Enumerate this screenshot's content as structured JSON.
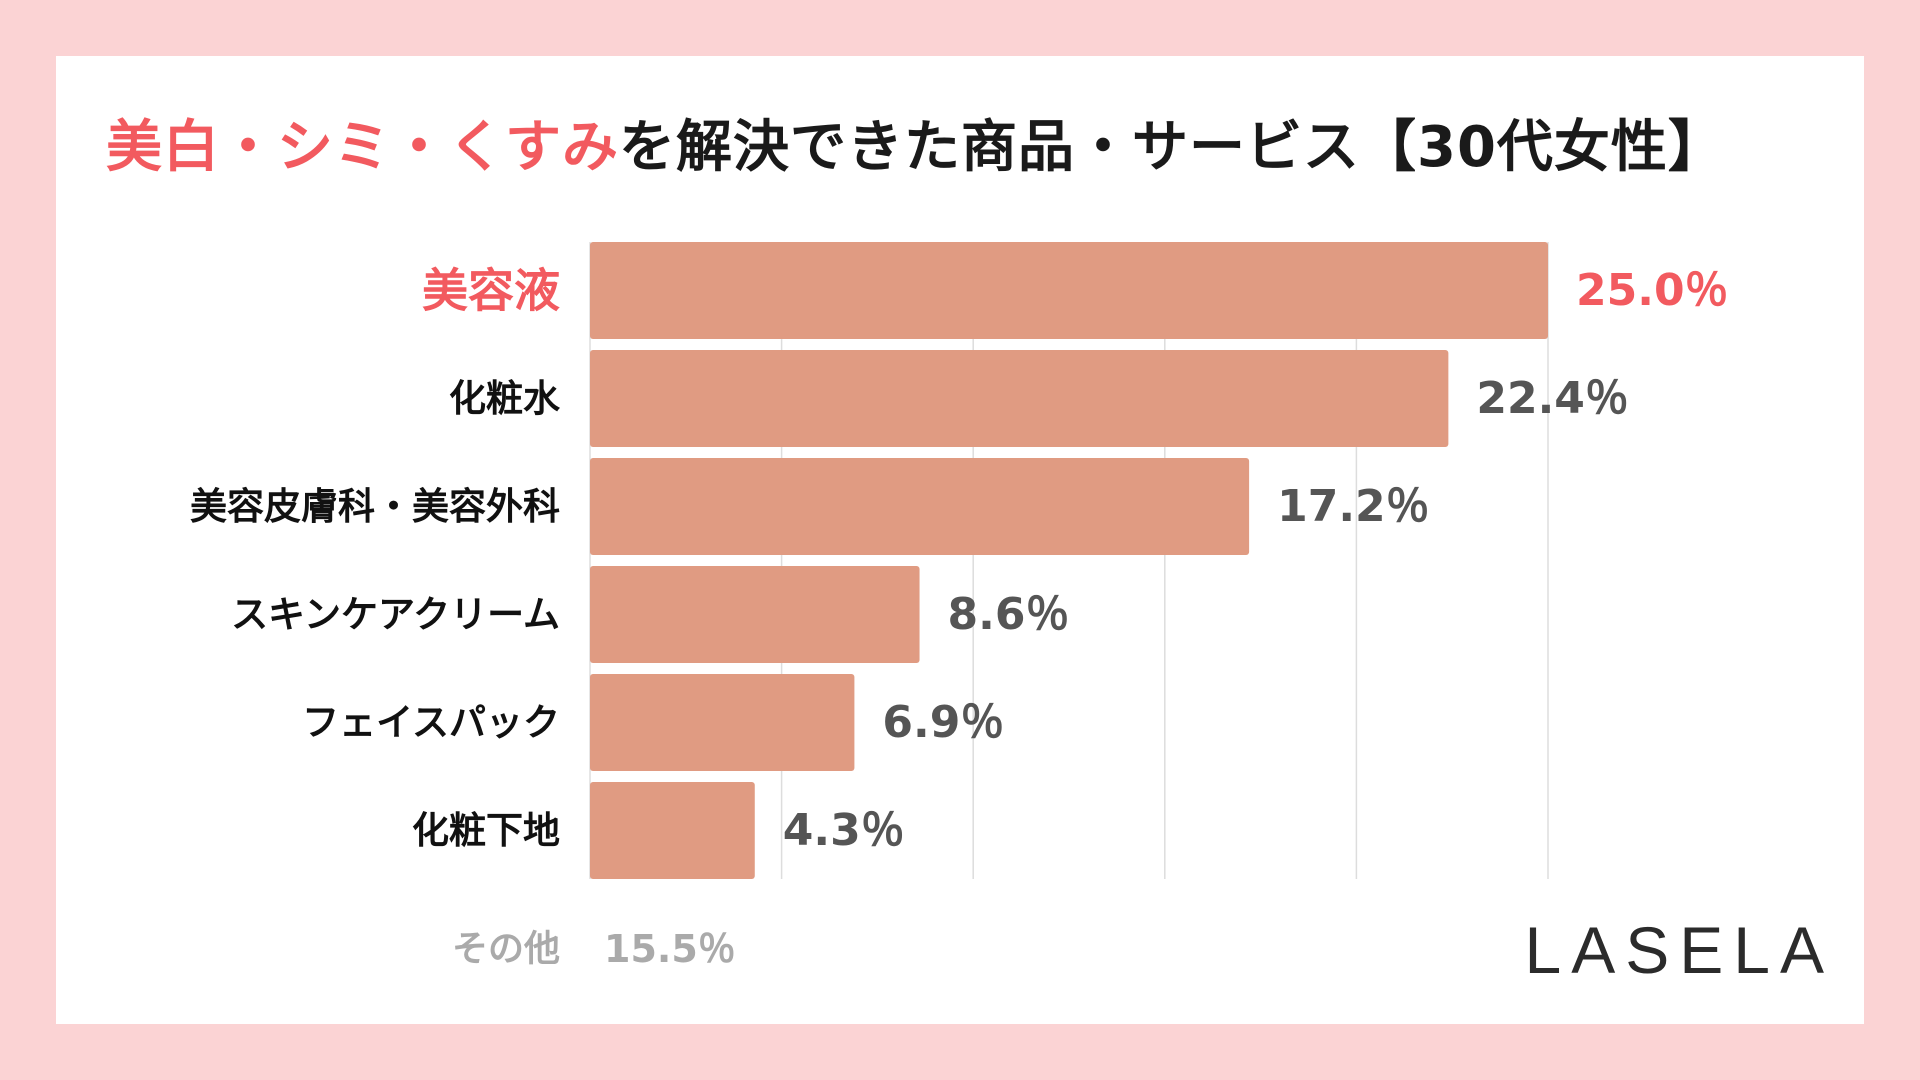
{
  "title": {
    "highlight": "美白・シミ・くすみ",
    "rest": "を解決できた商品・サービス【30代女性】"
  },
  "brand": "LASELA",
  "colors": {
    "background": "#fbd3d4",
    "bar": "#e09b82",
    "highlight": "#f25a5f",
    "category_text": "#111111",
    "value_text": "#555555",
    "other_text": "#aaaaaa",
    "grid": "#dddddd"
  },
  "chart_data": {
    "type": "bar",
    "orientation": "horizontal",
    "categories": [
      "美容液",
      "化粧水",
      "美容皮膚科・美容外科",
      "スキンケアクリーム",
      "フェイスパック",
      "化粧下地"
    ],
    "values": [
      25.0,
      22.4,
      17.2,
      8.6,
      6.9,
      4.3
    ],
    "value_labels": [
      "25.0％",
      "22.4％",
      "17.2％",
      "8.6％",
      "6.9％",
      "4.3％"
    ],
    "highlighted_index": 0,
    "xlim": [
      0,
      25
    ],
    "grid": true,
    "other": {
      "label": "その他",
      "value": 15.5,
      "value_label": "15.5％"
    }
  }
}
